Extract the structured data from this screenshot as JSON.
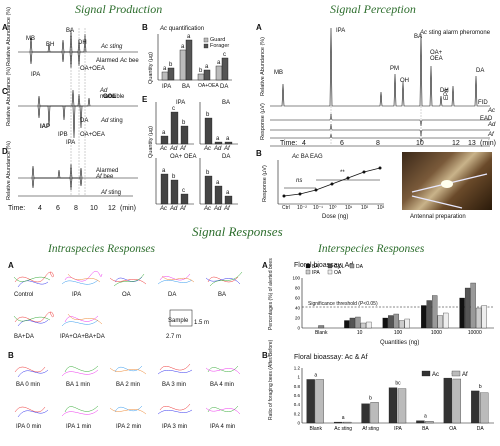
{
  "titles": {
    "production": "Signal Production",
    "perception": "Signal Perception",
    "responses": "Signal  Responses",
    "intra": "Intraspecies Responses",
    "inter": "Interspecies Responses"
  },
  "production": {
    "panels": [
      "A",
      "B",
      "C",
      "D",
      "E"
    ],
    "trace_labels": {
      "ac_sting": "Ac sting",
      "alarmed_ac_bee": "Alarmed Ac bee",
      "ad_mandible": "Ad mandible",
      "ad_sting": "Ad sting",
      "alarmed_af_bee": "Alarmed Af bee",
      "af_sting": "Af sting"
    },
    "trace_species": {
      "ac": "Ac",
      "ad": "Ad",
      "af": "Af"
    },
    "trace_parts": {
      "sting": "sting",
      "alarmed": "Alarmed",
      "bee": "bee",
      "mandible": "mandible"
    },
    "peaks": [
      "MB",
      "BH",
      "BA",
      "DH",
      "IPA",
      "OA+OEA",
      "GOL",
      "IAP",
      "IPB",
      "IPA",
      "OA+OEA",
      "DA",
      "PM"
    ],
    "yaxis": "Relative Abundance (%)",
    "xaxis": "Time:",
    "xticks": [
      "4",
      "6",
      "8",
      "10",
      "12",
      "(min)"
    ],
    "barB": {
      "title_species": "Ac",
      "title": "quantification",
      "legend": [
        "Guard",
        "Forager"
      ],
      "categories": [
        "IPA",
        "BA",
        "OA+OEA",
        "DA"
      ],
      "ylabel": "Quantity (µg)",
      "letters": [
        "a",
        "b",
        "a",
        "a",
        "b",
        "a",
        "a",
        "c"
      ]
    },
    "barE": {
      "groups": [
        "IPA",
        "BA",
        "OA+ OEA",
        "DA"
      ],
      "x": [
        "Ac",
        "Ad",
        "Af"
      ],
      "ylabel": "Quantity (µg)",
      "letters": [
        "a",
        "c",
        "b",
        "b",
        "a",
        "a",
        "a",
        "b",
        "c",
        "b",
        "a",
        "a"
      ]
    }
  },
  "perception": {
    "panel": "A",
    "species": "Ac",
    "title": "sting alarm pheromone",
    "peaks": [
      "MB",
      "IPA",
      "PM",
      "OH",
      "BA",
      "OA+ OEA",
      "DH",
      "EPA",
      "DA"
    ],
    "ylabel1": "Relative Abundance (%)",
    "ylabel2": "Response (µV)",
    "fid": "FID",
    "ead": "EAD",
    "ead_labels": [
      "Ac",
      "Ad",
      "Af"
    ],
    "xticks": [
      "4",
      "6",
      "8",
      "10",
      "12",
      "13",
      "(min)"
    ],
    "time": "Time:",
    "panelB": "B",
    "eag_species": "Ac",
    "eag_title": "BA EAG",
    "eag_ylabel": "Response (µV)",
    "eag_xlabel": "Dose (ng)",
    "eag_xticks": [
      "Ctrl",
      "10⁻²",
      "10⁻¹",
      "10⁰",
      "10¹",
      "10²",
      "10³"
    ],
    "ns": "ns",
    "sig": "**",
    "photo_label": "Antennal preparation"
  },
  "intra": {
    "A": "A",
    "B": "B",
    "row1": [
      "Control",
      "IPA",
      "OA",
      "DA",
      "BA"
    ],
    "row2": [
      "BA+DA",
      "IPA+OA+BA+DA"
    ],
    "scale": [
      "Sample",
      "1.5 m",
      "2.7 m"
    ],
    "rowB1": [
      "BA 0 min",
      "BA 1 min",
      "BA 2 min",
      "BA 3 min",
      "BA 4 min"
    ],
    "rowB2": [
      "IPA 0 min",
      "IPA 1 min",
      "IPA 2 min",
      "IPA 3 min",
      "IPA 4 min"
    ]
  },
  "chart_data": [
    {
      "type": "bar",
      "title": "Floral bioassay: Ad",
      "ylabel": "Percentages (%) of alerted bees",
      "xlabel": "Quantities (ng)",
      "categories": [
        "Blank",
        "10",
        "100",
        "1000",
        "10000"
      ],
      "ylim": [
        0,
        100
      ],
      "series": [
        {
          "name": "BA",
          "values": [
            null,
            15,
            20,
            45,
            60
          ]
        },
        {
          "name": "GOL",
          "values": [
            null,
            20,
            25,
            55,
            80
          ]
        },
        {
          "name": "DA",
          "values": [
            null,
            22,
            28,
            65,
            90
          ]
        },
        {
          "name": "IPA",
          "values": [
            null,
            10,
            15,
            25,
            40
          ]
        },
        {
          "name": "OA",
          "values": [
            null,
            12,
            18,
            30,
            45
          ]
        }
      ],
      "blank": 5,
      "threshold": 42,
      "threshold_label": "Significance threshold (P<0.05)",
      "panel": "A"
    },
    {
      "type": "bar",
      "title": "Floral bioassay: Ac & Af",
      "ylabel": "Ratio of foraging bees (After/Before)",
      "categories": [
        "Blank",
        "Ac sting",
        "Af sting",
        "IPA",
        "BA",
        "OA",
        "DA"
      ],
      "ylim": [
        0,
        1.2
      ],
      "series": [
        {
          "name": "Ac",
          "values": [
            0.95,
            0.02,
            0.42,
            0.77,
            0.05,
            0.98,
            0.7
          ]
        },
        {
          "name": "Af",
          "values": [
            0.95,
            0.02,
            0.45,
            0.75,
            0.04,
            0.96,
            0.66
          ]
        }
      ],
      "letters": [
        "a",
        "a",
        "b",
        "bc",
        "a",
        "c",
        "b"
      ],
      "panel": "B"
    }
  ],
  "inter_text": {
    "A": "A",
    "B": "B",
    "blank": "Blank",
    "sting": "sting",
    "ytick_top": [
      "100",
      "80",
      "60",
      "40",
      "20",
      "0"
    ],
    "ytick_bot": [
      "1.2",
      "1",
      "0.8",
      "0.6",
      "0.4",
      "0.2",
      "0"
    ]
  },
  "colors": {
    "title_green": "#2e6e2e",
    "dark": "#222222",
    "mid": "#777777",
    "light": "#bbbbbb"
  }
}
